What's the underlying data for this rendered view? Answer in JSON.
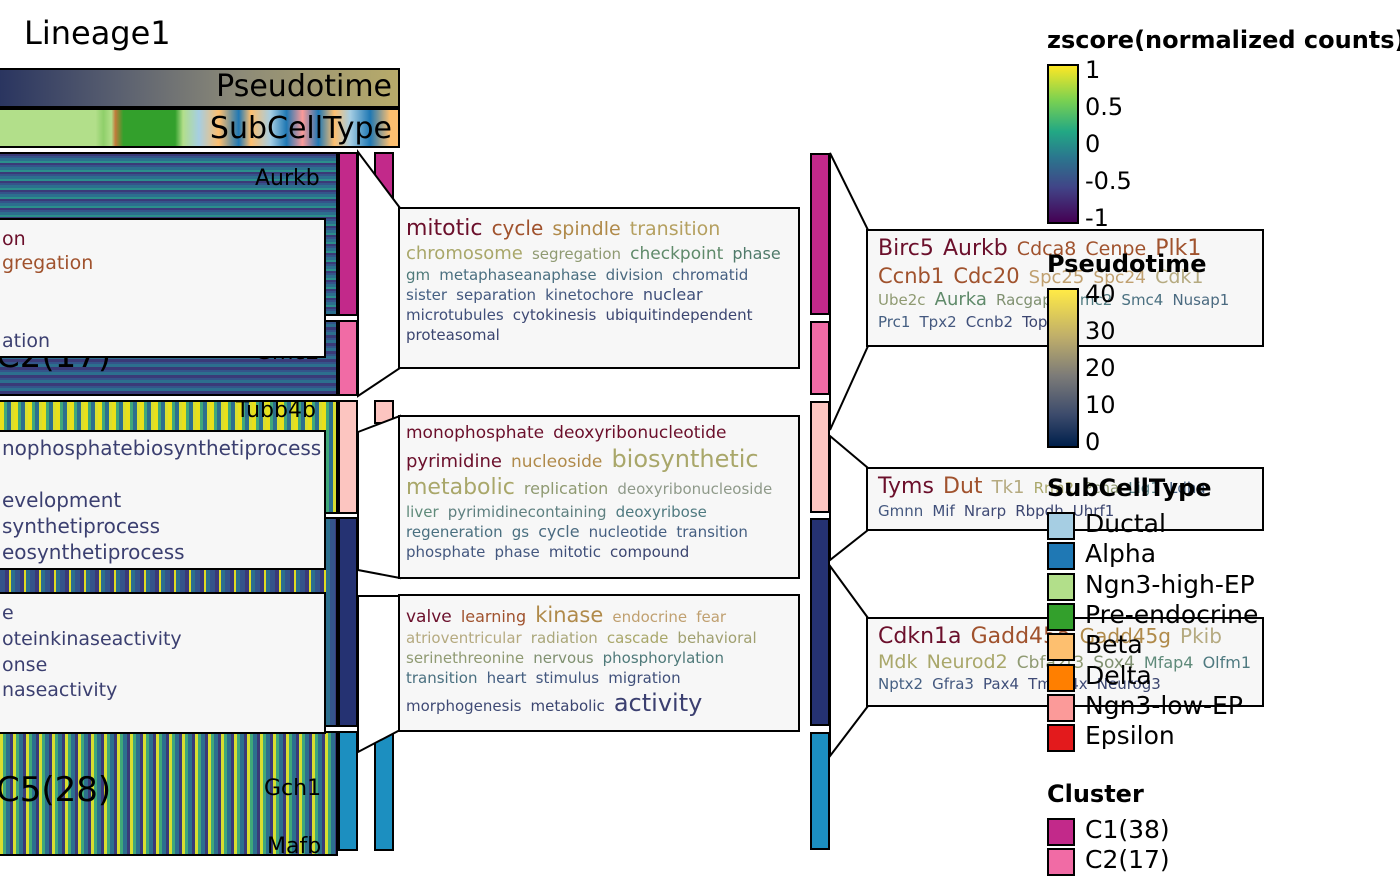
{
  "title": "Lineage1",
  "annotations": {
    "pseudotime_label": "Pseudotime",
    "subcelltype_label": "SubCellType"
  },
  "heatmap": {
    "gene_labels": [
      "Aurkb",
      "Smc2",
      "Tubb4b",
      "Gch1",
      "Mafb"
    ],
    "cluster_big_labels": [
      "C2(17)",
      "C5(28)"
    ]
  },
  "left_panels": [
    {
      "lines": [
        {
          "text": "on",
          "color": "#6b0f2b"
        },
        {
          "text": "gregation",
          "color": "#a0522d"
        },
        {
          "text": "ation",
          "color": "#3b3f70"
        }
      ]
    },
    {
      "lines": [
        {
          "text": "nophosphatebiosynthetiprocess",
          "color": "#3b3f70"
        },
        {
          "text": "evelopment",
          "color": "#3b3f70"
        },
        {
          "text": "synthetiprocess",
          "color": "#3b3f70"
        },
        {
          "text": "eosynthetiprocess",
          "color": "#3b3f70"
        }
      ]
    },
    {
      "lines": [
        {
          "text": "e",
          "color": "#3b3f70"
        },
        {
          "text": "oteinkinaseactivity",
          "color": "#3b3f70"
        },
        {
          "text": "onse",
          "color": "#3b3f70"
        },
        {
          "text": "naseactivity",
          "color": "#3b3f70"
        }
      ]
    }
  ],
  "go_clouds": [
    {
      "words": [
        {
          "t": "mitotic",
          "s": 22,
          "c": "#6b0f2b"
        },
        {
          "t": "cycle",
          "s": 20,
          "c": "#a0522d"
        },
        {
          "t": "spindle",
          "s": 19,
          "c": "#b08a4a"
        },
        {
          "t": "transition",
          "s": 19,
          "c": "#b5a060"
        },
        {
          "t": "chromosome",
          "s": 18,
          "c": "#a9a76a"
        },
        {
          "t": "segregation",
          "s": 15,
          "c": "#8f9a72"
        },
        {
          "t": "checkpoint",
          "s": 17,
          "c": "#5f8a6a"
        },
        {
          "t": "phase",
          "s": 16,
          "c": "#4f7a6a"
        },
        {
          "t": "gm",
          "s": 15,
          "c": "#4f7a7a"
        },
        {
          "t": "metaphaseanaphase",
          "s": 15,
          "c": "#4a6f80"
        },
        {
          "t": "division",
          "s": 15,
          "c": "#4a6a80"
        },
        {
          "t": "chromatid",
          "s": 15,
          "c": "#455f82"
        },
        {
          "t": "sister",
          "s": 15,
          "c": "#455f82"
        },
        {
          "t": "separation",
          "s": 15,
          "c": "#44587f"
        },
        {
          "t": "kinetochore",
          "s": 15,
          "c": "#44587f"
        },
        {
          "t": "nuclear",
          "s": 16,
          "c": "#3f4f7a"
        },
        {
          "t": "microtubules",
          "s": 15,
          "c": "#3f4f7a"
        },
        {
          "t": "cytokinesis",
          "s": 15,
          "c": "#3f4a75"
        },
        {
          "t": "ubiquitindependent",
          "s": 15,
          "c": "#3b4570"
        },
        {
          "t": "proteasomal",
          "s": 15,
          "c": "#3b4570"
        }
      ]
    },
    {
      "words": [
        {
          "t": "monophosphate",
          "s": 17,
          "c": "#6b0f2b"
        },
        {
          "t": "deoxyribonucleotide",
          "s": 17,
          "c": "#6b0f2b"
        },
        {
          "t": "pyrimidine",
          "s": 18,
          "c": "#6b0f2b"
        },
        {
          "t": "nucleoside",
          "s": 17,
          "c": "#b08a4a"
        },
        {
          "t": "biosynthetic",
          "s": 24,
          "c": "#a9a76a"
        },
        {
          "t": "metabolic",
          "s": 22,
          "c": "#a9a76a"
        },
        {
          "t": "replication",
          "s": 16,
          "c": "#8f9a72"
        },
        {
          "t": "deoxyribonucleoside",
          "s": 15,
          "c": "#8f9a8a"
        },
        {
          "t": "liver",
          "s": 15,
          "c": "#5f8a7a"
        },
        {
          "t": "pyrimidinecontaining",
          "s": 15,
          "c": "#5f8080"
        },
        {
          "t": "deoxyribose",
          "s": 15,
          "c": "#4f7a80"
        },
        {
          "t": "regeneration",
          "s": 15,
          "c": "#4a7080"
        },
        {
          "t": "gs",
          "s": 15,
          "c": "#4a7080"
        },
        {
          "t": "cycle",
          "s": 16,
          "c": "#4a6a80"
        },
        {
          "t": "nucleotide",
          "s": 15,
          "c": "#455f82"
        },
        {
          "t": "transition",
          "s": 15,
          "c": "#455f82"
        },
        {
          "t": "phosphate",
          "s": 15,
          "c": "#44587f"
        },
        {
          "t": "phase",
          "s": 15,
          "c": "#44587f"
        },
        {
          "t": "mitotic",
          "s": 15,
          "c": "#3f4f7a"
        },
        {
          "t": "compound",
          "s": 15,
          "c": "#3b4570"
        }
      ]
    },
    {
      "words": [
        {
          "t": "valve",
          "s": 17,
          "c": "#6b0f2b"
        },
        {
          "t": "learning",
          "s": 16,
          "c": "#a0522d"
        },
        {
          "t": "kinase",
          "s": 21,
          "c": "#b08a4a"
        },
        {
          "t": "endocrine",
          "s": 15,
          "c": "#c0a070"
        },
        {
          "t": "fear",
          "s": 15,
          "c": "#c0a070"
        },
        {
          "t": "atrioventricular",
          "s": 15,
          "c": "#b5aa80"
        },
        {
          "t": "radiation",
          "s": 15,
          "c": "#aaa77a"
        },
        {
          "t": "cascade",
          "s": 15,
          "c": "#a9a76a"
        },
        {
          "t": "behavioral",
          "s": 15,
          "c": "#a0a070"
        },
        {
          "t": "serinethreonine",
          "s": 15,
          "c": "#8f9a72"
        },
        {
          "t": "nervous",
          "s": 15,
          "c": "#7f9070"
        },
        {
          "t": "phosphorylation",
          "s": 15,
          "c": "#4f7a7a"
        },
        {
          "t": "transition",
          "s": 15,
          "c": "#4a7080"
        },
        {
          "t": "heart",
          "s": 15,
          "c": "#455f82"
        },
        {
          "t": "stimulus",
          "s": 15,
          "c": "#44587f"
        },
        {
          "t": "migration",
          "s": 15,
          "c": "#3f4f7a"
        },
        {
          "t": "morphogenesis",
          "s": 15,
          "c": "#3f4a75"
        },
        {
          "t": "metabolic",
          "s": 15,
          "c": "#3b4570"
        },
        {
          "t": "activity",
          "s": 24,
          "c": "#3b3f70"
        }
      ]
    }
  ],
  "gene_clouds": [
    {
      "words": [
        {
          "t": "Birc5",
          "s": 22,
          "c": "#6b0f2b"
        },
        {
          "t": "Aurkb",
          "s": 22,
          "c": "#6b0f2b"
        },
        {
          "t": "Cdca8",
          "s": 19,
          "c": "#a0522d"
        },
        {
          "t": "Cenpe",
          "s": 19,
          "c": "#a0522d"
        },
        {
          "t": "Plk1",
          "s": 22,
          "c": "#a0522d"
        },
        {
          "t": "Ccnb1",
          "s": 21,
          "c": "#a0522d"
        },
        {
          "t": "Cdc20",
          "s": 21,
          "c": "#a0522d"
        },
        {
          "t": "Spc25",
          "s": 18,
          "c": "#c0a070"
        },
        {
          "t": "Spc24",
          "s": 17,
          "c": "#c0a070"
        },
        {
          "t": "Cdk1",
          "s": 19,
          "c": "#b5aa80"
        },
        {
          "t": "Ube2c",
          "s": 15,
          "c": "#8f9a72"
        },
        {
          "t": "Aurka",
          "s": 18,
          "c": "#5f8a6a"
        },
        {
          "t": "Racgap1",
          "s": 15,
          "c": "#7f9070"
        },
        {
          "t": "Smc2",
          "s": 15,
          "c": "#4f7a80"
        },
        {
          "t": "Smc4",
          "s": 15,
          "c": "#4a7080"
        },
        {
          "t": "Nusap1",
          "s": 15,
          "c": "#4a6a80"
        },
        {
          "t": "Prc1",
          "s": 15,
          "c": "#455f82"
        },
        {
          "t": "Tpx2",
          "s": 15,
          "c": "#44587f"
        },
        {
          "t": "Ccnb2",
          "s": 15,
          "c": "#3f4f7a"
        },
        {
          "t": "Top2a",
          "s": 15,
          "c": "#3b4570"
        }
      ]
    },
    {
      "words": [
        {
          "t": "Tyms",
          "s": 22,
          "c": "#6b0f2b"
        },
        {
          "t": "Dut",
          "s": 22,
          "c": "#a0522d"
        },
        {
          "t": "Tk1",
          "s": 18,
          "c": "#b5aa80"
        },
        {
          "t": "Rrm2",
          "s": 15,
          "c": "#a9a76a"
        },
        {
          "t": "Pcna",
          "s": 15,
          "c": "#8f9a72"
        },
        {
          "t": "Lig1",
          "s": 15,
          "c": "#4f7a80"
        },
        {
          "t": "Ldha",
          "s": 15,
          "c": "#455f82"
        },
        {
          "t": "Gmnn",
          "s": 15,
          "c": "#44587f"
        },
        {
          "t": "Mif",
          "s": 15,
          "c": "#3f4f7a"
        },
        {
          "t": "Nrarp",
          "s": 15,
          "c": "#3f4a75"
        },
        {
          "t": "Rbpdh",
          "s": 15,
          "c": "#3b4570"
        },
        {
          "t": "Uhrf1",
          "s": 15,
          "c": "#3b4570"
        }
      ]
    },
    {
      "words": [
        {
          "t": "Cdkn1a",
          "s": 22,
          "c": "#6b0f2b"
        },
        {
          "t": "Gadd45a",
          "s": 22,
          "c": "#a0522d"
        },
        {
          "t": "Gadd45g",
          "s": 20,
          "c": "#b08a4a"
        },
        {
          "t": "Pkib",
          "s": 20,
          "c": "#b5aa80"
        },
        {
          "t": "Mdk",
          "s": 19,
          "c": "#a9a76a"
        },
        {
          "t": "Neurod2",
          "s": 19,
          "c": "#a9a76a"
        },
        {
          "t": "Cbfa2t3",
          "s": 17,
          "c": "#8f9a72"
        },
        {
          "t": "Sox4",
          "s": 17,
          "c": "#7f9070"
        },
        {
          "t": "Mfap4",
          "s": 16,
          "c": "#5f8a7a"
        },
        {
          "t": "Olfm1",
          "s": 16,
          "c": "#4f7a80"
        },
        {
          "t": "Nptx2",
          "s": 15,
          "c": "#455f82"
        },
        {
          "t": "Gfra3",
          "s": 15,
          "c": "#44587f"
        },
        {
          "t": "Pax4",
          "s": 15,
          "c": "#3f4f7a"
        },
        {
          "t": "Tmsb4x",
          "s": 15,
          "c": "#3f4a75"
        },
        {
          "t": "Neurog3",
          "s": 15,
          "c": "#3b4570"
        }
      ]
    }
  ],
  "legends": {
    "zscore": {
      "title": "zscore(normalized counts)",
      "ticks": [
        "1",
        "0.5",
        "0",
        "-0.5",
        "-1"
      ]
    },
    "pseudotime": {
      "title": "Pseudotime",
      "ticks": [
        "40",
        "30",
        "20",
        "10",
        "0"
      ]
    },
    "subcelltype": {
      "title": "SubCellType",
      "items": [
        {
          "label": "Ductal",
          "color": "#a6cee3"
        },
        {
          "label": "Alpha",
          "color": "#1f78b4"
        },
        {
          "label": "Ngn3-high-EP",
          "color": "#b2df8a"
        },
        {
          "label": "Pre-endocrine",
          "color": "#33a02c"
        },
        {
          "label": "Beta",
          "color": "#fdbf6f"
        },
        {
          "label": "Delta",
          "color": "#ff7f00"
        },
        {
          "label": "Ngn3-low-EP",
          "color": "#fb9a99"
        },
        {
          "label": "Epsilon",
          "color": "#e31a1c"
        }
      ]
    },
    "cluster": {
      "title": "Cluster",
      "items": [
        {
          "label": "C1(38)",
          "color": "#c2298a"
        },
        {
          "label": "C2(17)",
          "color": "#f16ba5"
        }
      ]
    }
  },
  "cluster_colors": [
    "#c2298a",
    "#f16ba5",
    "#fcc5c0",
    "#253272",
    "#1c8fc0"
  ]
}
